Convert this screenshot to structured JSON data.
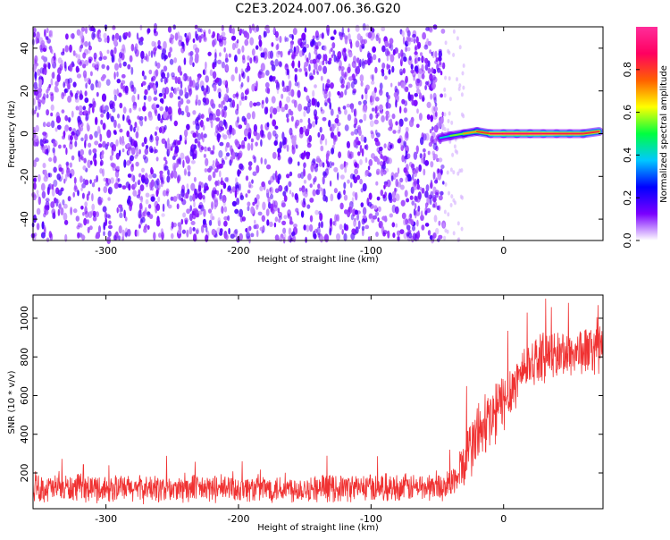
{
  "title": "C2E3.2024.007.06.36.G20",
  "chart_data": [
    {
      "type": "heatmap",
      "xlabel": "Height of straight line (km)",
      "ylabel": "Frequency (Hz)",
      "xlim": [
        -355,
        75
      ],
      "ylim": [
        -50,
        50
      ],
      "x_ticks": [
        -300,
        -200,
        -100,
        0
      ],
      "x_tick_labels": [
        "-300",
        "-200",
        "-100",
        "0"
      ],
      "y_ticks": [
        -40,
        -20,
        0,
        20,
        40
      ],
      "y_tick_labels": [
        "-40",
        "-20",
        "0",
        "20",
        "40"
      ],
      "noise_region_x": [
        -355,
        -45
      ],
      "signal_track": {
        "x": [
          -48,
          -40,
          -30,
          -20,
          -10,
          0,
          10,
          20,
          30,
          40,
          50,
          60,
          72
        ],
        "freq": [
          -2,
          -1,
          0,
          1,
          0,
          0,
          0,
          0,
          0,
          0,
          0,
          0,
          1
        ],
        "amplitude": [
          0.35,
          0.45,
          0.65,
          0.75,
          0.85,
          0.9,
          0.9,
          0.9,
          0.88,
          0.85,
          0.85,
          0.85,
          0.8
        ]
      },
      "colorbar": {
        "label": "Normalized spectral amplitude",
        "range": [
          0.0,
          1.0
        ],
        "ticks": [
          0.0,
          0.2,
          0.4,
          0.6,
          0.8
        ],
        "tick_labels": [
          "0.0",
          "0.2",
          "0.4",
          "0.6",
          "0.8"
        ],
        "colors": [
          "#ffffff",
          "#7a00ff",
          "#0000ff",
          "#00c8ff",
          "#00ff40",
          "#ffff00",
          "#ff6000",
          "#ff0060",
          "#ff2d9a"
        ]
      },
      "grid": false
    },
    {
      "type": "line",
      "xlabel": "Height of straight line (km)",
      "ylabel": "SNR (10 * v/v)",
      "xlim": [
        -355,
        75
      ],
      "ylim": [
        15,
        1120
      ],
      "x_ticks": [
        -300,
        -200,
        -100,
        0
      ],
      "x_tick_labels": [
        "-300",
        "-200",
        "-100",
        "0"
      ],
      "y_ticks": [
        200,
        400,
        600,
        800,
        1000
      ],
      "y_tick_labels": [
        "200",
        "400",
        "600",
        "800",
        "1000"
      ],
      "series_color": "#f03232",
      "x": [
        -355,
        -300,
        -250,
        -200,
        -150,
        -100,
        -60,
        -45,
        -35,
        -30,
        -25,
        -20,
        -15,
        -10,
        -5,
        0,
        5,
        10,
        15,
        20,
        25,
        30,
        40,
        50,
        60,
        70,
        75
      ],
      "y": [
        120,
        120,
        115,
        120,
        120,
        125,
        125,
        130,
        170,
        260,
        330,
        400,
        430,
        470,
        520,
        570,
        630,
        680,
        740,
        770,
        790,
        800,
        810,
        820,
        830,
        840,
        860
      ],
      "spread": [
        80,
        80,
        80,
        80,
        80,
        80,
        80,
        80,
        110,
        160,
        180,
        200,
        200,
        200,
        200,
        180,
        160,
        150,
        140,
        140,
        140,
        140,
        140,
        140,
        140,
        150,
        150
      ],
      "grid": false
    }
  ]
}
